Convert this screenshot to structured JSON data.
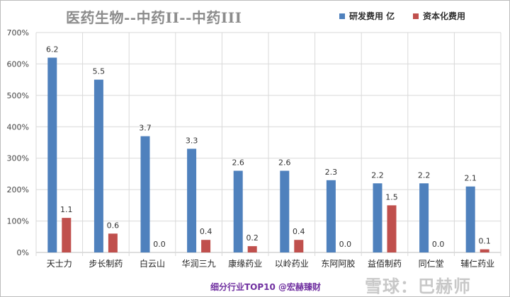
{
  "chart_data": {
    "type": "bar",
    "title": "医药生物--中药II--中药III",
    "categories": [
      "天士力",
      "步长制药",
      "白云山",
      "华润三九",
      "康缘药业",
      "以岭药业",
      "东阿阿胶",
      "益佰制药",
      "同仁堂",
      "辅仁药业"
    ],
    "series": [
      {
        "name": "研发费用 亿",
        "color": "#4f81bd",
        "values": [
          6.2,
          5.5,
          3.7,
          3.3,
          2.6,
          2.6,
          2.3,
          2.2,
          2.2,
          2.1
        ],
        "labels": [
          "6.2",
          "5.5",
          "3.7",
          "3.3",
          "2.6",
          "2.6",
          "2.3",
          "2.2",
          "2.2",
          "2.1"
        ]
      },
      {
        "name": "资本化费用",
        "color": "#c0504d",
        "values": [
          1.1,
          0.6,
          0.0,
          0.4,
          0.2,
          0.4,
          0.0,
          1.5,
          0.0,
          0.1
        ],
        "labels": [
          "1.1",
          "0.6",
          "0.0",
          "0.4",
          "0.2",
          "0.4",
          "0.0",
          "1.5",
          "0.0",
          "0.1"
        ]
      }
    ],
    "yticks": [
      "0%",
      "100%",
      "200%",
      "300%",
      "400%",
      "500%",
      "600%",
      "700%"
    ],
    "ylim": [
      0,
      7
    ],
    "grid": true,
    "legend_position": "top-right"
  },
  "footer": {
    "text": "细分行业TOP10 @宏赫臻财",
    "color": "#7030a0"
  },
  "watermark": {
    "text": "雪球：巴赫师"
  },
  "colors": {
    "title": "#8c8c8c"
  }
}
